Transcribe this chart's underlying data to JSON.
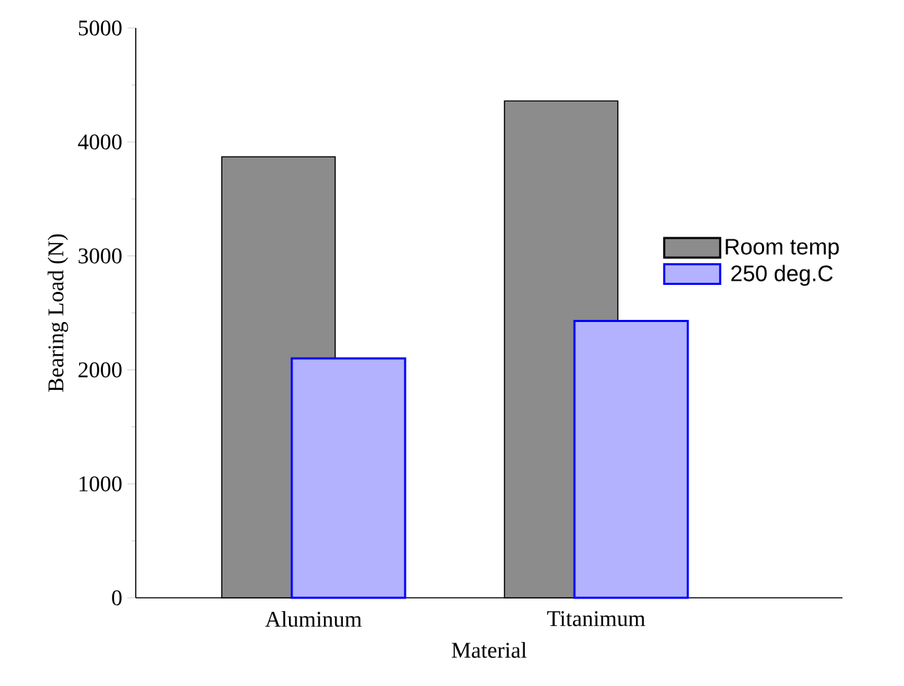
{
  "chart_data": {
    "type": "bar",
    "xlabel": "Material",
    "ylabel": "Bearing Load (N)",
    "categories": [
      "Aluminum",
      "Titanimum"
    ],
    "series": [
      {
        "name": "Room temp",
        "color": "#000000",
        "values": [
          3870,
          4360
        ]
      },
      {
        "name": "250 deg.C",
        "color": "#0000ff",
        "values": [
          2100,
          2430
        ]
      }
    ],
    "ylim": [
      0,
      5000
    ],
    "yticks": [
      0,
      1000,
      2000,
      3000,
      4000,
      5000
    ],
    "legend": "right"
  }
}
